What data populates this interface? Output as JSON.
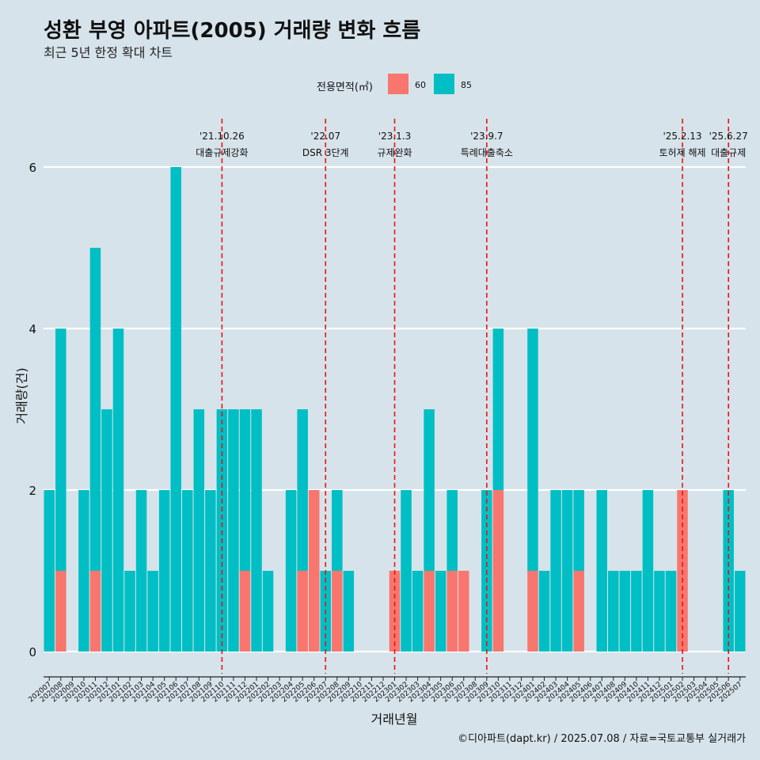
{
  "title": "성환 부영 아파트(2005) 거래량 변화 흐름",
  "subtitle": "최근 5년 한정 확대 차트",
  "caption": "©디아파트(dapt.kr) / 2025.07.08 / 자료=국토교통부 실거래가",
  "legend": {
    "title": "전용면적(㎡)",
    "items": [
      {
        "label": "60",
        "color": "#f8766d"
      },
      {
        "label": "85",
        "color": "#00bfc4"
      }
    ]
  },
  "chart_data": {
    "type": "bar",
    "xlabel": "거래년월",
    "ylabel": "거래량(건)",
    "ylim": [
      0,
      6
    ],
    "yticks": [
      0,
      2,
      4,
      6
    ],
    "categories": [
      "202007",
      "202008",
      "202009",
      "202010",
      "202011",
      "202012",
      "202101",
      "202102",
      "202103",
      "202104",
      "202105",
      "202106",
      "202107",
      "202108",
      "202109",
      "202110",
      "202111",
      "202112",
      "202201",
      "202202",
      "202203",
      "202204",
      "202205",
      "202206",
      "202207",
      "202208",
      "202209",
      "202210",
      "202211",
      "202212",
      "202301",
      "202302",
      "202303",
      "202304",
      "202305",
      "202306",
      "202307",
      "202308",
      "202309",
      "202310",
      "202311",
      "202312",
      "202401",
      "202402",
      "202403",
      "202404",
      "202405",
      "202406",
      "202407",
      "202408",
      "202409",
      "202410",
      "202411",
      "202412",
      "202501",
      "202502",
      "202503",
      "202504",
      "202505",
      "202506",
      "202507"
    ],
    "series": [
      {
        "name": "60",
        "color": "#f8766d",
        "values": [
          0,
          1,
          0,
          0,
          1,
          0,
          0,
          0,
          0,
          0,
          0,
          0,
          0,
          0,
          0,
          0,
          0,
          1,
          0,
          0,
          0,
          0,
          1,
          2,
          0,
          1,
          0,
          0,
          0,
          0,
          1,
          0,
          0,
          1,
          0,
          1,
          1,
          0,
          0,
          2,
          0,
          0,
          1,
          0,
          0,
          0,
          1,
          0,
          0,
          0,
          0,
          0,
          0,
          0,
          0,
          2,
          0,
          0,
          0,
          0,
          0
        ]
      },
      {
        "name": "85",
        "color": "#00bfc4",
        "values": [
          2,
          3,
          0,
          2,
          4,
          3,
          4,
          1,
          2,
          1,
          2,
          6,
          2,
          3,
          2,
          3,
          3,
          2,
          3,
          1,
          0,
          2,
          2,
          0,
          1,
          1,
          1,
          0,
          0,
          0,
          0,
          2,
          1,
          2,
          1,
          1,
          0,
          0,
          2,
          2,
          0,
          0,
          3,
          1,
          2,
          2,
          1,
          0,
          2,
          1,
          1,
          1,
          2,
          1,
          1,
          0,
          0,
          0,
          0,
          2,
          1
        ]
      }
    ],
    "annotations": [
      {
        "date": "'21.10.26",
        "text": "대출규제강화",
        "category": "202110"
      },
      {
        "date": "'22.07",
        "text": "DSR 3단계",
        "category": "202207"
      },
      {
        "date": "'23.1.3",
        "text": "규제완화",
        "category": "202301"
      },
      {
        "date": "'23.9.7",
        "text": "특례대출축소",
        "category": "202309"
      },
      {
        "date": "'25.2.13",
        "text": "토허제 해제",
        "category": "202502"
      },
      {
        "date": "'25.6.27",
        "text": "대출규제",
        "category": "202506"
      }
    ]
  }
}
